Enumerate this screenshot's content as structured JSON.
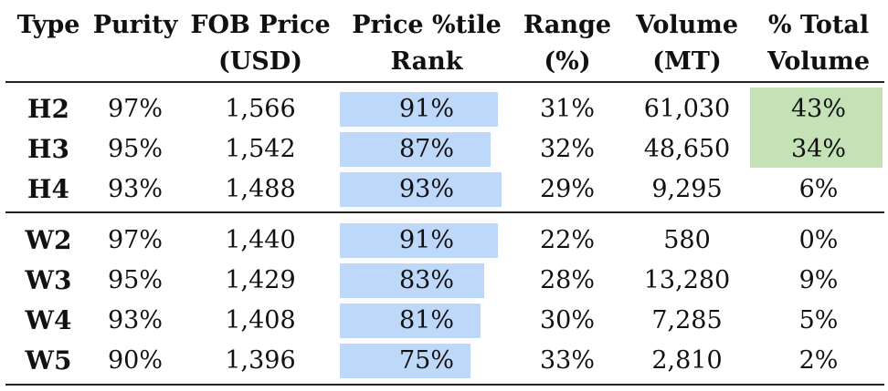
{
  "headers": {
    "type": "Type",
    "purity": "Purity",
    "fob_line1": "FOB Price",
    "fob_line2": "(USD)",
    "rank_line1": "Price %tile",
    "rank_line2": "Rank",
    "range_line1": "Range",
    "range_line2": "(%)",
    "volume_line1": "Volume",
    "volume_line2": "(MT)",
    "total_line1": "% Total",
    "total_line2": "Volume"
  },
  "colors": {
    "rank_bar": "#bdd8f8",
    "top_volume_highlight": "#c4e2b5"
  },
  "group_h": [
    {
      "type": "H2",
      "purity": "97%",
      "fob": "1,566",
      "rank": "91%",
      "rank_value": 0.91,
      "range": "31%",
      "volume": "61,030",
      "total": "43%"
    },
    {
      "type": "H3",
      "purity": "95%",
      "fob": "1,542",
      "rank": "87%",
      "rank_value": 0.87,
      "range": "32%",
      "volume": "48,650",
      "total": "34%"
    },
    {
      "type": "H4",
      "purity": "93%",
      "fob": "1,488",
      "rank": "93%",
      "rank_value": 0.93,
      "range": "29%",
      "volume": "9,295",
      "total": "6%"
    }
  ],
  "group_w": [
    {
      "type": "W2",
      "purity": "97%",
      "fob": "1,440",
      "rank": "91%",
      "rank_value": 0.91,
      "range": "22%",
      "volume": "580",
      "total": "0%"
    },
    {
      "type": "W3",
      "purity": "95%",
      "fob": "1,429",
      "rank": "83%",
      "rank_value": 0.83,
      "range": "28%",
      "volume": "13,280",
      "total": "9%"
    },
    {
      "type": "W4",
      "purity": "93%",
      "fob": "1,408",
      "rank": "81%",
      "rank_value": 0.81,
      "range": "30%",
      "volume": "7,285",
      "total": "5%"
    },
    {
      "type": "W5",
      "purity": "90%",
      "fob": "1,396",
      "rank": "75%",
      "rank_value": 0.75,
      "range": "33%",
      "volume": "2,810",
      "total": "2%"
    }
  ]
}
